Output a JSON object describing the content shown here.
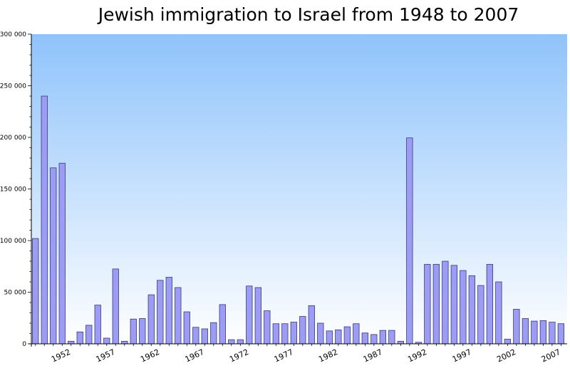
{
  "chart_data": {
    "type": "bar",
    "title": "Jewish immigration to Israel from 1948 to 2007",
    "xlabel": "",
    "ylabel": "",
    "ylim": [
      0,
      300000
    ],
    "y_ticks": [
      0,
      50000,
      100000,
      150000,
      200000,
      250000,
      300000
    ],
    "y_tick_labels": [
      "0",
      "50 000",
      "100 000",
      "150 000",
      "200 000",
      "250 000",
      "300 000"
    ],
    "x_tick_labels": [
      "1952",
      "1957",
      "1962",
      "1967",
      "1972",
      "1977",
      "1982",
      "1987",
      "1992",
      "1997",
      "2002",
      "2007"
    ],
    "categories": [
      1948,
      1949,
      1950,
      1951,
      1952,
      1953,
      1954,
      1955,
      1956,
      1957,
      1958,
      1959,
      1960,
      1961,
      1962,
      1963,
      1964,
      1965,
      1966,
      1967,
      1968,
      1969,
      1970,
      1971,
      1972,
      1973,
      1974,
      1975,
      1976,
      1977,
      1978,
      1979,
      1980,
      1981,
      1982,
      1983,
      1984,
      1985,
      1986,
      1987,
      1988,
      1989,
      1990,
      1991,
      1992,
      1993,
      1994,
      1995,
      1996,
      1997,
      1998,
      1999,
      2000,
      2001,
      2002,
      2003,
      2004,
      2005,
      2006,
      2007
    ],
    "values": [
      102000,
      240000,
      170500,
      175000,
      2500,
      11500,
      18000,
      37500,
      5500,
      72500,
      2500,
      24000,
      24500,
      47500,
      61500,
      64500,
      54500,
      31000,
      16000,
      14500,
      20500,
      38000,
      4000,
      4000,
      56000,
      54500,
      32000,
      19500,
      19500,
      21000,
      26500,
      37000,
      20000,
      12500,
      13500,
      16500,
      19500,
      10500,
      9000,
      13000,
      13000,
      2500,
      199500,
      1500,
      77000,
      77000,
      80000,
      76000,
      71000,
      66000,
      56500,
      77000,
      60000,
      4500,
      33500,
      24500,
      22000,
      22500,
      21000,
      19500
    ],
    "colors": {
      "bar_fill": "#9c9cf4",
      "bar_stroke": "#3a3a7a",
      "bg_top": "#8fc3fb",
      "bg_bottom": "#ffffff"
    },
    "grid": false,
    "legend": "none"
  }
}
